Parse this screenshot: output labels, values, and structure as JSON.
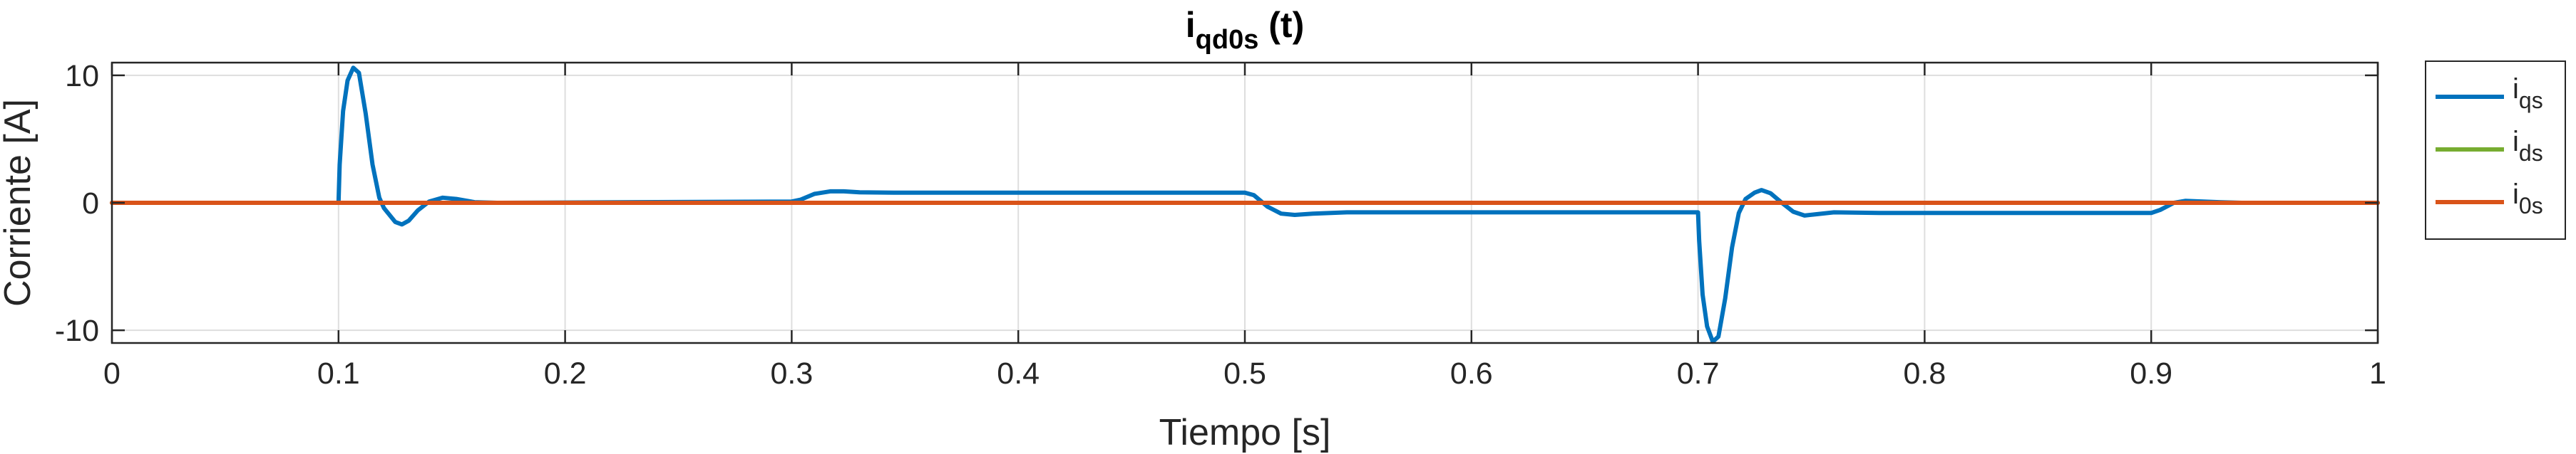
{
  "chart_data": {
    "type": "line",
    "title": {
      "main": "i",
      "sub": "qd0s",
      "rest": " (t)"
    },
    "xlabel": "Tiempo [s]",
    "ylabel": "Corriente [A]",
    "xlim": [
      0,
      1
    ],
    "ylim": [
      -11,
      11
    ],
    "xticks": [
      0,
      0.1,
      0.2,
      0.3,
      0.4,
      0.5,
      0.6,
      0.7,
      0.8,
      0.9,
      1
    ],
    "xtick_labels": [
      "0",
      "0.1",
      "0.2",
      "0.3",
      "0.4",
      "0.5",
      "0.6",
      "0.7",
      "0.8",
      "0.9",
      "1"
    ],
    "yticks": [
      -10,
      0,
      10
    ],
    "ytick_labels": [
      "-10",
      "0",
      "10"
    ],
    "grid": true,
    "legend_position": "outside-right-top",
    "series": [
      {
        "name": "i",
        "name_sub": "qs",
        "color": "#0072BD",
        "points": [
          [
            0,
            0
          ],
          [
            0.1,
            0
          ],
          [
            0.1,
            0
          ],
          [
            0.1005,
            3.0
          ],
          [
            0.102,
            7.2
          ],
          [
            0.104,
            9.6
          ],
          [
            0.1065,
            10.6
          ],
          [
            0.109,
            10.2
          ],
          [
            0.112,
            7.0
          ],
          [
            0.115,
            3.0
          ],
          [
            0.118,
            0.4
          ],
          [
            0.12,
            -0.4
          ],
          [
            0.125,
            -1.5
          ],
          [
            0.128,
            -1.7
          ],
          [
            0.131,
            -1.4
          ],
          [
            0.135,
            -0.6
          ],
          [
            0.14,
            0.1
          ],
          [
            0.146,
            0.4
          ],
          [
            0.152,
            0.3
          ],
          [
            0.16,
            0.05
          ],
          [
            0.17,
            0.0
          ],
          [
            0.3,
            0.1
          ],
          [
            0.304,
            0.25
          ],
          [
            0.31,
            0.7
          ],
          [
            0.317,
            0.9
          ],
          [
            0.323,
            0.9
          ],
          [
            0.33,
            0.82
          ],
          [
            0.345,
            0.8
          ],
          [
            0.5,
            0.8
          ],
          [
            0.504,
            0.6
          ],
          [
            0.51,
            -0.3
          ],
          [
            0.516,
            -0.85
          ],
          [
            0.522,
            -0.95
          ],
          [
            0.53,
            -0.85
          ],
          [
            0.545,
            -0.75
          ],
          [
            0.7,
            -0.75
          ],
          [
            0.7,
            -0.75
          ],
          [
            0.7005,
            -3.0
          ],
          [
            0.702,
            -7.2
          ],
          [
            0.704,
            -9.7
          ],
          [
            0.7065,
            -10.9
          ],
          [
            0.709,
            -10.5
          ],
          [
            0.712,
            -7.5
          ],
          [
            0.715,
            -3.5
          ],
          [
            0.718,
            -0.8
          ],
          [
            0.721,
            0.3
          ],
          [
            0.725,
            0.8
          ],
          [
            0.728,
            1.0
          ],
          [
            0.732,
            0.75
          ],
          [
            0.737,
            0.0
          ],
          [
            0.742,
            -0.7
          ],
          [
            0.747,
            -1.0
          ],
          [
            0.752,
            -0.9
          ],
          [
            0.76,
            -0.75
          ],
          [
            0.78,
            -0.8
          ],
          [
            0.9,
            -0.8
          ],
          [
            0.904,
            -0.55
          ],
          [
            0.91,
            0.0
          ],
          [
            0.915,
            0.15
          ],
          [
            0.92,
            0.12
          ],
          [
            0.93,
            0.05
          ],
          [
            0.94,
            0.0
          ],
          [
            1,
            0
          ]
        ]
      },
      {
        "name": "i",
        "name_sub": "ds",
        "color": "#77AC30",
        "points": [
          [
            0,
            0
          ],
          [
            1,
            0
          ]
        ]
      },
      {
        "name": "i",
        "name_sub": "0s",
        "color": "#D95319",
        "points": [
          [
            0,
            0
          ],
          [
            1,
            0
          ]
        ]
      }
    ]
  }
}
